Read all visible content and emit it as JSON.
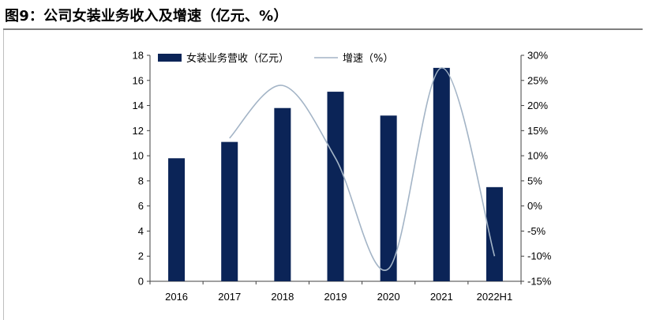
{
  "header": {
    "title": "图9：公司女装业务收入及增速（亿元、%）"
  },
  "colors": {
    "bar": "#0b2457",
    "line": "#a3b4c6",
    "axis": "#404040"
  },
  "chart_data": {
    "type": "bar",
    "title": "图9：公司女装业务收入及增速（亿元、%）",
    "categories": [
      "2016",
      "2017",
      "2018",
      "2019",
      "2020",
      "2021",
      "2022H1"
    ],
    "series": [
      {
        "name": "女装业务营收（亿元）",
        "type": "bar",
        "axis": "left",
        "values": [
          9.8,
          11.1,
          13.8,
          15.1,
          13.2,
          17.0,
          7.5
        ]
      },
      {
        "name": "增速（%）",
        "type": "line",
        "axis": "right",
        "values": [
          null,
          13.5,
          24.0,
          9.5,
          -12.5,
          27.5,
          -10.0
        ]
      }
    ],
    "y_left": {
      "ylim": [
        0,
        18
      ],
      "ticks": [
        0,
        2,
        4,
        6,
        8,
        10,
        12,
        14,
        16,
        18
      ]
    },
    "y_right": {
      "ylim": [
        -15,
        30
      ],
      "ticks": [
        -15,
        -10,
        -5,
        0,
        5,
        10,
        15,
        20,
        25,
        30
      ],
      "tick_labels": [
        "-15%",
        "-10%",
        "-5%",
        "0%",
        "5%",
        "10%",
        "15%",
        "20%",
        "25%",
        "30%"
      ]
    },
    "xlabel": "",
    "ylabel": "",
    "legend": {
      "placement": "top-left"
    },
    "grid": false
  }
}
